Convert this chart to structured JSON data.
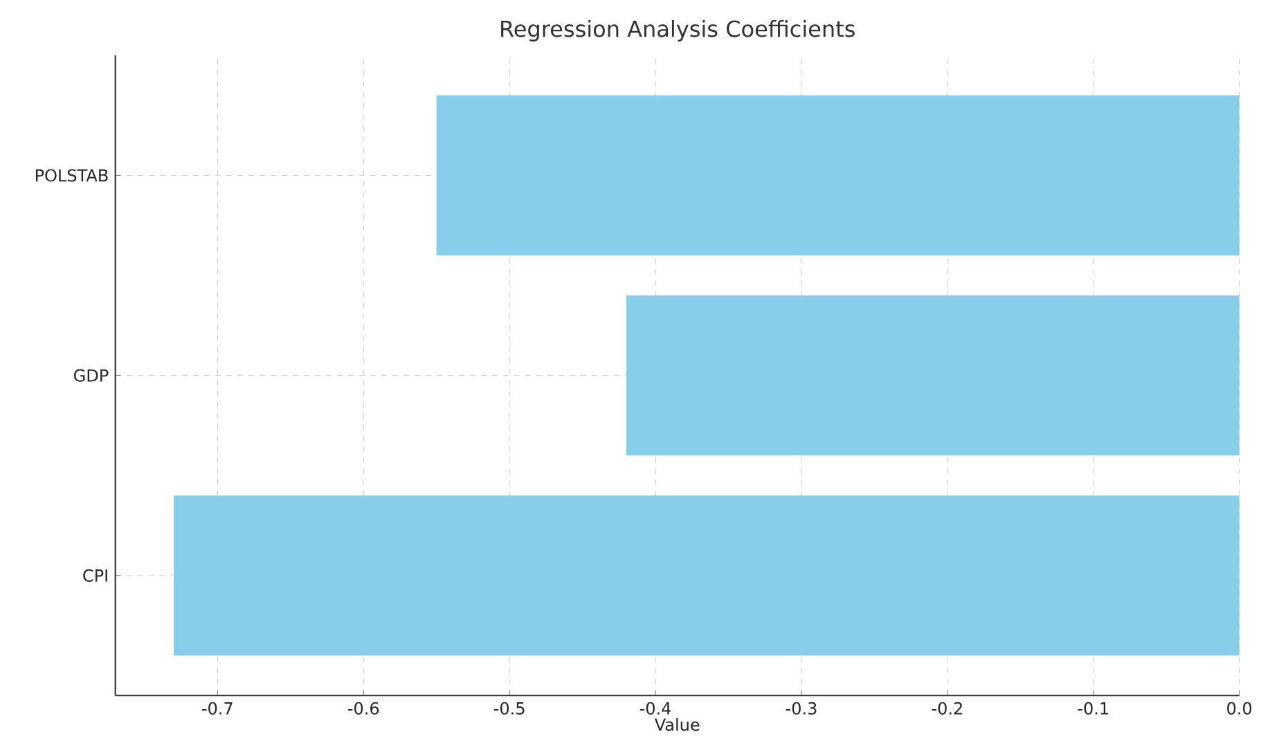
{
  "chart_data": {
    "type": "bar",
    "orientation": "horizontal",
    "title": "Regression Analysis Coefficients",
    "xlabel": "Value",
    "categories": [
      "POLSTAB",
      "GDP",
      "CPI"
    ],
    "values": [
      -0.55,
      -0.42,
      -0.73
    ],
    "color": "#87ceeb",
    "xlim": [
      -0.77,
      0
    ],
    "xticks": [
      -0.7,
      -0.6,
      -0.5,
      -0.4,
      -0.3,
      -0.2,
      -0.1,
      {
        "value": 0,
        "label": "0.0"
      }
    ],
    "grid": true
  }
}
